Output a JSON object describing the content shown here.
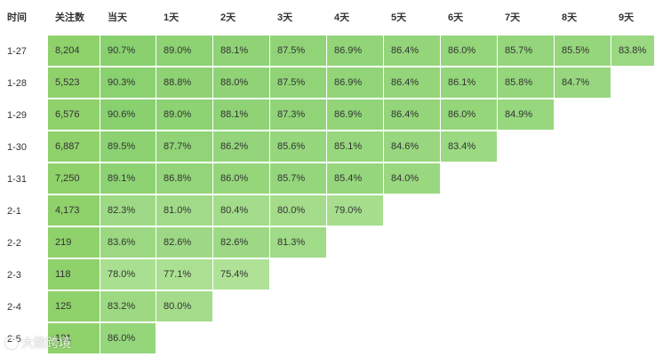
{
  "headers": [
    "时间",
    "关注数",
    "当天",
    "1天",
    "2天",
    "3天",
    "4天",
    "5天",
    "6天",
    "7天",
    "8天",
    "9天"
  ],
  "rows": [
    {
      "date": "1-27",
      "followers": "8,204",
      "values": [
        "90.7%",
        "89.0%",
        "88.1%",
        "87.5%",
        "86.9%",
        "86.4%",
        "86.0%",
        "85.7%",
        "85.5%",
        "83.8%"
      ]
    },
    {
      "date": "1-28",
      "followers": "5,523",
      "values": [
        "90.3%",
        "88.8%",
        "88.0%",
        "87.5%",
        "86.9%",
        "86.4%",
        "86.1%",
        "85.8%",
        "84.7%"
      ]
    },
    {
      "date": "1-29",
      "followers": "6,576",
      "values": [
        "90.6%",
        "89.0%",
        "88.1%",
        "87.3%",
        "86.9%",
        "86.4%",
        "86.0%",
        "84.9%"
      ]
    },
    {
      "date": "1-30",
      "followers": "6,887",
      "values": [
        "89.5%",
        "87.7%",
        "86.2%",
        "85.6%",
        "85.1%",
        "84.6%",
        "83.4%"
      ]
    },
    {
      "date": "1-31",
      "followers": "7,250",
      "values": [
        "89.1%",
        "86.8%",
        "86.0%",
        "85.7%",
        "85.4%",
        "84.0%"
      ]
    },
    {
      "date": "2-1",
      "followers": "4,173",
      "values": [
        "82.3%",
        "81.0%",
        "80.4%",
        "80.0%",
        "79.0%"
      ]
    },
    {
      "date": "2-2",
      "followers": "219",
      "values": [
        "83.6%",
        "82.6%",
        "82.6%",
        "81.3%"
      ]
    },
    {
      "date": "2-3",
      "followers": "118",
      "values": [
        "78.0%",
        "77.1%",
        "75.4%"
      ]
    },
    {
      "date": "2-4",
      "followers": "125",
      "values": [
        "83.2%",
        "80.0%"
      ]
    },
    {
      "date": "2-5",
      "followers": "101",
      "values": [
        "86.0%"
      ]
    }
  ],
  "watermark": {
    "text": "大数跨境",
    "icon": "brand-logo-icon"
  },
  "colors": {
    "cell_dark": "#8dd36c",
    "cell_light": "#a8e08d",
    "text": "#333333"
  }
}
